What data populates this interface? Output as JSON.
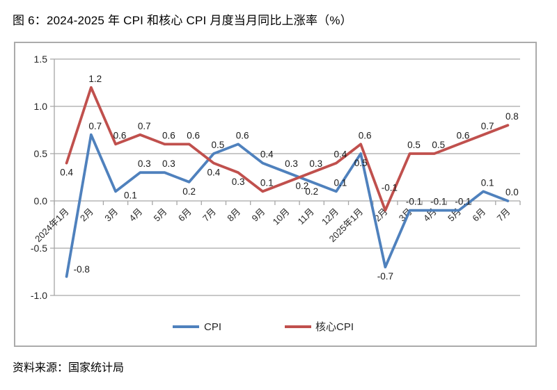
{
  "title": "图 6：2024-2025 年 CPI 和核心 CPI 月度当月同比上涨率（%）",
  "source": "资料来源：国家统计局",
  "colors": {
    "cpi_line": "#4f81bd",
    "core_cpi_line": "#c0504d",
    "grid": "#a6a6a6",
    "axis_text": "#262626",
    "data_label_text": "#1a1a1a",
    "frame_border": "#ababab",
    "background": "#ffffff"
  },
  "chart_data": {
    "type": "line",
    "title": "2024-2025 年 CPI 和核心 CPI 月度当月同比上涨率（%）",
    "categories": [
      "2024年1月",
      "2月",
      "3月",
      "4月",
      "5月",
      "6月",
      "7月",
      "8月",
      "9月",
      "10月",
      "11月",
      "12月",
      "2025年1月",
      "2月",
      "3月",
      "4月",
      "5月",
      "6月",
      "7月"
    ],
    "series": [
      {
        "name": "CPI",
        "color": "#4f81bd",
        "values": [
          -0.8,
          0.7,
          0.1,
          0.3,
          0.3,
          0.2,
          0.5,
          0.6,
          0.4,
          0.3,
          0.2,
          0.1,
          0.5,
          -0.7,
          -0.1,
          -0.1,
          -0.1,
          0.1,
          0.0
        ],
        "label_pos": [
          "r",
          "a",
          "br",
          "a",
          "a",
          "b",
          "a",
          "a",
          "a",
          "a",
          "b",
          "a",
          "b",
          "b",
          "a",
          "a",
          "a",
          "a",
          "a"
        ]
      },
      {
        "name": "核心CPI",
        "color": "#c0504d",
        "values": [
          0.4,
          1.2,
          0.6,
          0.7,
          0.6,
          0.6,
          0.4,
          0.3,
          0.1,
          0.2,
          0.3,
          0.4,
          0.6,
          -0.1,
          0.5,
          0.5,
          0.6,
          0.7,
          0.8
        ],
        "label_pos": [
          "b",
          "a",
          "a",
          "a",
          "a",
          "a",
          "b",
          "b",
          "a",
          "br",
          "a",
          "a",
          "a",
          "A",
          "a",
          "a",
          "a",
          "a",
          "a"
        ]
      }
    ],
    "xlabel": "",
    "ylabel": "",
    "ylim": [
      -1.0,
      1.5
    ],
    "yticks": [
      1.5,
      1.0,
      0.5,
      0.0,
      -0.5,
      -1.0
    ],
    "grid": true,
    "data_labels": true,
    "legend_position": "bottom"
  }
}
